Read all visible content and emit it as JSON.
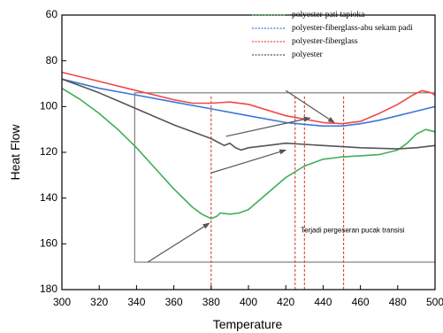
{
  "chart_data": {
    "type": "line",
    "xlabel": "Temperature",
    "ylabel": "Heat Flow",
    "xlim": [
      300,
      500
    ],
    "ylim": [
      180,
      60
    ],
    "y_inverted": true,
    "x_ticks": [
      300,
      320,
      340,
      360,
      380,
      400,
      420,
      440,
      460,
      480,
      500
    ],
    "y_ticks": [
      60,
      80,
      100,
      120,
      140,
      160,
      180
    ],
    "legend_position": "top-right",
    "grid": false,
    "series": [
      {
        "name": "polyester-pati tapioka",
        "color": "#3fae5a",
        "line_style": "dashed-in-legend",
        "points": [
          [
            300,
            92
          ],
          [
            310,
            97
          ],
          [
            320,
            103
          ],
          [
            330,
            110
          ],
          [
            340,
            118
          ],
          [
            350,
            127
          ],
          [
            360,
            136
          ],
          [
            370,
            144
          ],
          [
            375,
            147
          ],
          [
            380,
            149
          ],
          [
            383,
            148
          ],
          [
            385,
            146.5
          ],
          [
            390,
            147
          ],
          [
            395,
            146.5
          ],
          [
            400,
            145
          ],
          [
            410,
            138
          ],
          [
            420,
            131
          ],
          [
            430,
            126
          ],
          [
            440,
            123
          ],
          [
            450,
            122
          ],
          [
            460,
            121.5
          ],
          [
            470,
            121
          ],
          [
            480,
            119
          ],
          [
            485,
            116
          ],
          [
            490,
            112
          ],
          [
            495,
            110
          ],
          [
            500,
            111
          ]
        ]
      },
      {
        "name": "polyester-fiberglass-abu sekam padi",
        "color": "#3b78d8",
        "line_style": "dashed-in-legend",
        "points": [
          [
            300,
            88
          ],
          [
            320,
            92
          ],
          [
            340,
            95
          ],
          [
            360,
            98
          ],
          [
            380,
            101
          ],
          [
            400,
            104
          ],
          [
            420,
            107
          ],
          [
            440,
            108.5
          ],
          [
            450,
            108.5
          ],
          [
            460,
            107.5
          ],
          [
            470,
            106
          ],
          [
            480,
            104
          ],
          [
            490,
            102
          ],
          [
            500,
            100
          ]
        ]
      },
      {
        "name": "polyester-fiberglass",
        "color": "#f04848",
        "line_style": "dashed-in-legend",
        "points": [
          [
            300,
            85
          ],
          [
            320,
            89
          ],
          [
            340,
            93
          ],
          [
            360,
            97
          ],
          [
            370,
            98.5
          ],
          [
            380,
            98.5
          ],
          [
            390,
            98
          ],
          [
            400,
            99
          ],
          [
            420,
            104
          ],
          [
            440,
            107
          ],
          [
            450,
            107.5
          ],
          [
            460,
            106.5
          ],
          [
            470,
            103
          ],
          [
            480,
            99
          ],
          [
            488,
            95
          ],
          [
            493,
            93
          ],
          [
            498,
            94
          ],
          [
            500,
            95
          ]
        ]
      },
      {
        "name": "polyester",
        "color": "#555555",
        "line_style": "dashed-in-legend",
        "points": [
          [
            300,
            88
          ],
          [
            320,
            94
          ],
          [
            340,
            101
          ],
          [
            360,
            108
          ],
          [
            380,
            114
          ],
          [
            387,
            117
          ],
          [
            390,
            116
          ],
          [
            393,
            118
          ],
          [
            396,
            119
          ],
          [
            400,
            118
          ],
          [
            410,
            117
          ],
          [
            420,
            116
          ],
          [
            430,
            116.5
          ],
          [
            440,
            117
          ],
          [
            460,
            118
          ],
          [
            480,
            118.5
          ],
          [
            490,
            118
          ],
          [
            500,
            117
          ]
        ]
      }
    ],
    "reference_lines_x": [
      380,
      425,
      430,
      451
    ],
    "reference_line_color": "#d62828",
    "shift_box": {
      "x_from": 339,
      "x_to": 500,
      "y_from": 94,
      "y_to": 168
    },
    "arrows": [
      {
        "from": [
          346,
          168
        ],
        "to": [
          379,
          151
        ]
      },
      {
        "from": [
          380,
          129
        ],
        "to": [
          420,
          119
        ]
      },
      {
        "from": [
          388,
          113
        ],
        "to": [
          433,
          105
        ]
      },
      {
        "from": [
          420,
          93
        ],
        "to": [
          446,
          107
        ]
      }
    ],
    "annotations": [
      {
        "text": "Terjadi pergeseran pucak transisi",
        "x": 428,
        "y": 155
      }
    ]
  }
}
